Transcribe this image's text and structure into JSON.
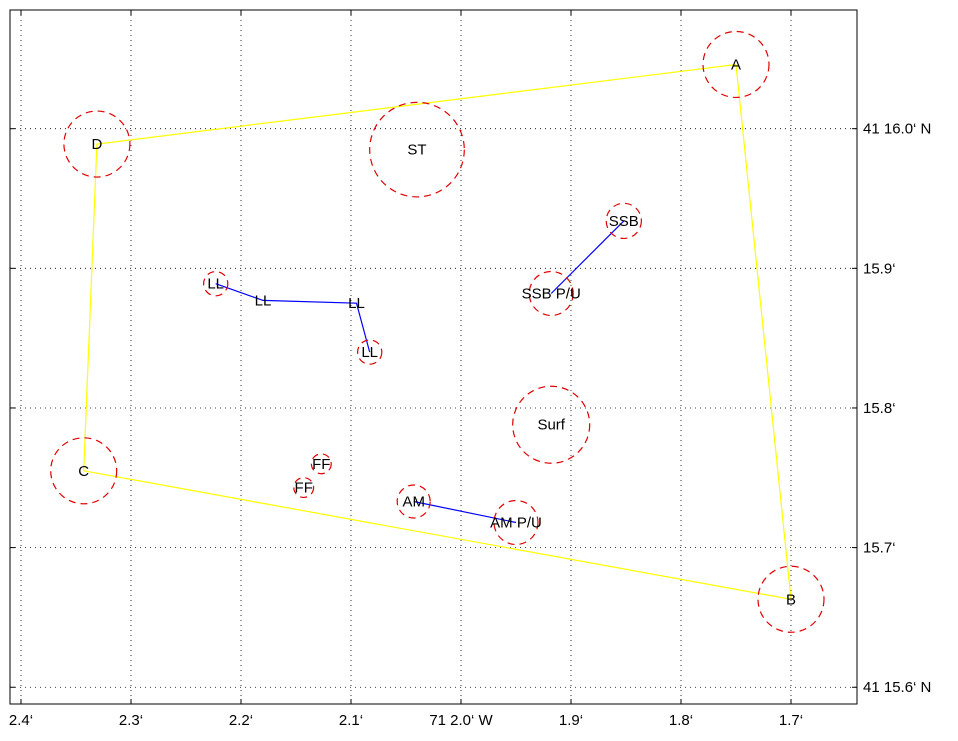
{
  "chart_data": {
    "type": "scatter",
    "title": "",
    "xlabel": "",
    "ylabel": "",
    "x_axis": {
      "reversed": true,
      "xlim": [
        2.41,
        1.64
      ],
      "ticks": [
        {
          "value": 2.4,
          "label": "2.4‘"
        },
        {
          "value": 2.3,
          "label": "2.3‘"
        },
        {
          "value": 2.2,
          "label": "2.2‘"
        },
        {
          "value": 2.1,
          "label": "2.1‘"
        },
        {
          "value": 2.0,
          "label": "71 2.0‘ W"
        },
        {
          "value": 1.9,
          "label": "1.9‘"
        },
        {
          "value": 1.8,
          "label": "1.8‘"
        },
        {
          "value": 1.7,
          "label": "1.7‘"
        }
      ]
    },
    "y_axis": {
      "ylim": [
        15.588,
        16.085
      ],
      "ticks": [
        {
          "value": 16.0,
          "label": "41 16.0‘ N"
        },
        {
          "value": 15.9,
          "label": "15.9‘"
        },
        {
          "value": 15.8,
          "label": "15.8‘"
        },
        {
          "value": 15.7,
          "label": "15.7‘"
        },
        {
          "value": 15.6,
          "label": "41 15.6‘ N"
        }
      ]
    },
    "grid": true,
    "points": [
      {
        "label": "A",
        "x": 1.75,
        "y": 16.046,
        "radius": 0.03
      },
      {
        "label": "B",
        "x": 1.7,
        "y": 15.663,
        "radius": 0.03
      },
      {
        "label": "C",
        "x": 2.343,
        "y": 15.755,
        "radius": 0.03
      },
      {
        "label": "D",
        "x": 2.331,
        "y": 15.989,
        "radius": 0.03
      },
      {
        "label": "ST",
        "x": 2.04,
        "y": 15.985,
        "radius": 0.043
      },
      {
        "label": "SSB",
        "x": 1.852,
        "y": 15.934,
        "radius": 0.016
      },
      {
        "label": "SSB P/U",
        "x": 1.918,
        "y": 15.882,
        "radius": 0.02
      },
      {
        "label": "LL",
        "x": 2.223,
        "y": 15.889,
        "radius": 0.011
      },
      {
        "label": "LL",
        "x": 2.18,
        "y": 15.877,
        "radius": 0
      },
      {
        "label": "LL",
        "x": 2.095,
        "y": 15.875,
        "radius": 0
      },
      {
        "label": "LL",
        "x": 2.083,
        "y": 15.84,
        "radius": 0.011
      },
      {
        "label": "Surf",
        "x": 1.918,
        "y": 15.788,
        "radius": 0.035
      },
      {
        "label": "FF",
        "x": 2.127,
        "y": 15.76,
        "radius": 0.009
      },
      {
        "label": "FF",
        "x": 2.143,
        "y": 15.743,
        "radius": 0.009
      },
      {
        "label": "AM",
        "x": 2.043,
        "y": 15.733,
        "radius": 0.015
      },
      {
        "label": "AM P/U",
        "x": 1.95,
        "y": 15.718,
        "radius": 0.02
      }
    ],
    "lines": [
      {
        "color": "#ffff00",
        "path": [
          [
            1.75,
            16.046
          ],
          [
            1.7,
            15.663
          ],
          [
            2.343,
            15.755
          ],
          [
            2.331,
            15.989
          ],
          [
            1.75,
            16.046
          ]
        ]
      },
      {
        "color": "#0000ff",
        "path": [
          [
            2.223,
            15.889
          ],
          [
            2.18,
            15.877
          ],
          [
            2.095,
            15.875
          ],
          [
            2.083,
            15.84
          ]
        ]
      },
      {
        "color": "#0000ff",
        "path": [
          [
            1.852,
            15.934
          ],
          [
            1.918,
            15.882
          ]
        ]
      },
      {
        "color": "#0000ff",
        "path": [
          [
            2.043,
            15.733
          ],
          [
            1.95,
            15.718
          ]
        ]
      }
    ],
    "colors": {
      "circle": "#e00000",
      "grid": "#000000",
      "axis": "#000000",
      "background": "#ffffff"
    }
  }
}
